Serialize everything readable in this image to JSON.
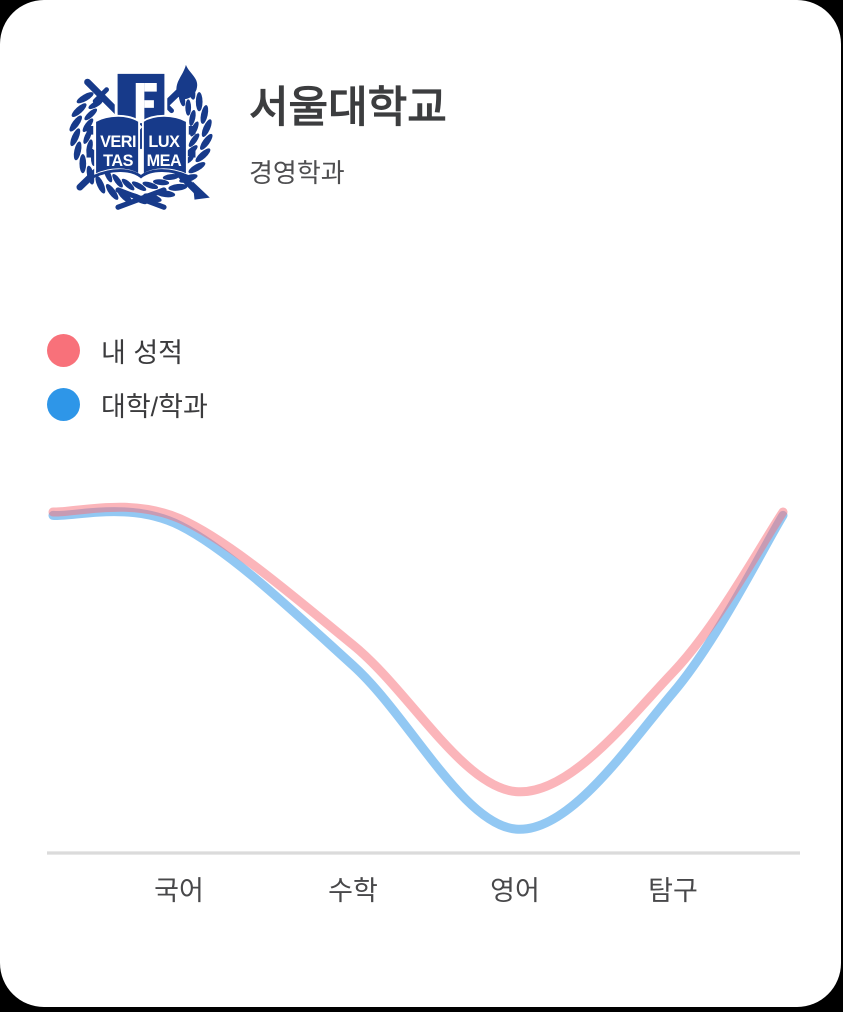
{
  "card": {
    "background": "#FFFFFF",
    "page_background": "#000000"
  },
  "header": {
    "university": "서울대학교",
    "department": "경영학과",
    "logo": {
      "icon": "snu-emblem-icon",
      "color": "#173A8A",
      "motto_words": {
        "left_top": "VERI",
        "left_bottom": "TAS",
        "right_top": "LUX",
        "right_bottom": "MEA"
      }
    }
  },
  "legend": {
    "items": [
      {
        "id": "my-score",
        "label": "내 성적",
        "color": "#F8717A"
      },
      {
        "id": "univ-dept",
        "label": "대학/학과",
        "color": "#2E96E8"
      }
    ]
  },
  "chart_data": {
    "type": "line",
    "smoothing": "spline",
    "categories": [
      "국어",
      "수학",
      "영어",
      "탐구"
    ],
    "series": [
      {
        "id": "my-score",
        "name": "내 성적",
        "color": "#F8717A",
        "values": [
          98,
          61,
          18,
          53
        ],
        "curve_values": [
          100,
          98,
          61,
          18,
          53,
          100
        ]
      },
      {
        "id": "univ-dept",
        "name": "대학/학과",
        "color": "#2E96E8",
        "values": [
          96,
          55,
          7,
          47
        ],
        "curve_values": [
          99,
          96,
          55,
          7,
          47,
          99
        ]
      }
    ],
    "ylim": [
      0,
      100
    ],
    "y_axis_visible": false,
    "grid": false,
    "legend_position": "top-left",
    "line_opacity": 0.52,
    "axis_line_color": "#DBDBDB",
    "label_color": "#48484A"
  }
}
